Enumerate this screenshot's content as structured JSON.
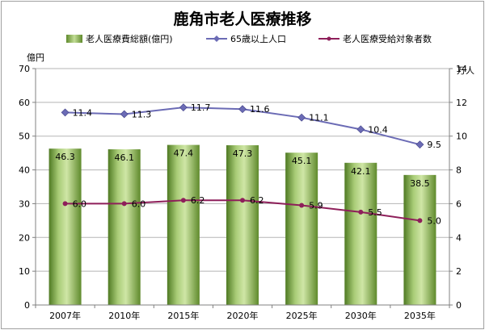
{
  "chart_data": {
    "type": "bar",
    "title": "鹿角市老人医療推移",
    "categories": [
      "2007年",
      "2010年",
      "2015年",
      "2020年",
      "2025年",
      "2030年",
      "2035年"
    ],
    "y_left": {
      "unit": "億円",
      "ylim": [
        0,
        70
      ],
      "ticks": [
        0,
        10,
        20,
        30,
        40,
        50,
        60,
        70
      ]
    },
    "y_right": {
      "unit": "万人",
      "ylim": [
        0,
        14
      ],
      "ticks": [
        0,
        2,
        4,
        6,
        8,
        10,
        12,
        14
      ]
    },
    "grid": true,
    "legend_position": "top",
    "series": [
      {
        "name": "老人医療費総額(億円)",
        "type": "bar",
        "axis": "left",
        "color": "#7fa84a",
        "values": [
          46.3,
          46.1,
          47.4,
          47.3,
          45.1,
          42.1,
          38.5
        ],
        "labels": [
          "46.3",
          "46.1",
          "47.4",
          "47.3",
          "45.1",
          "42.1",
          "38.5"
        ]
      },
      {
        "name": "65歳以上人口",
        "type": "line",
        "axis": "right",
        "color": "#6b6bb5",
        "values": [
          11.4,
          11.3,
          11.7,
          11.6,
          11.1,
          10.4,
          9.5
        ],
        "labels": [
          "11.4",
          "11.3",
          "11.7",
          "11.6",
          "11.1",
          "10.4",
          "9.5"
        ]
      },
      {
        "name": "老人医療受給対象者数",
        "type": "line",
        "axis": "right",
        "color": "#8e1f5a",
        "values": [
          6.0,
          6.0,
          6.2,
          6.2,
          5.9,
          5.5,
          5.0
        ],
        "labels": [
          "6.0",
          "6.0",
          "6.2",
          "6.2",
          "5.9",
          "5.5",
          "5.0"
        ]
      }
    ]
  }
}
